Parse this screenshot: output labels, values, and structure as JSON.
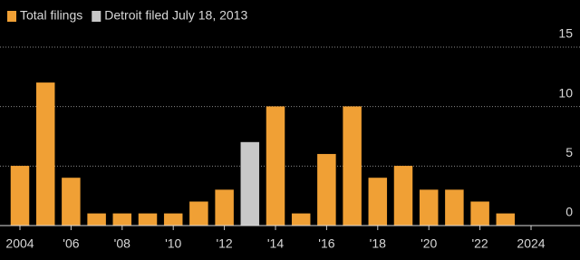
{
  "chart_data": {
    "type": "bar",
    "categories": [
      "2004",
      null,
      "'06",
      null,
      "'08",
      null,
      "'10",
      null,
      "'12",
      null,
      "'14",
      null,
      "'16",
      null,
      "'18",
      null,
      "'20",
      null,
      "'22",
      null,
      "2024",
      null
    ],
    "series": [
      {
        "name": "Total filings",
        "color": "#f0a035",
        "values": [
          5,
          12,
          4,
          1,
          1,
          1,
          1,
          2,
          3,
          null,
          10,
          1,
          6,
          10,
          4,
          5,
          3,
          3,
          2,
          1,
          0,
          0
        ]
      },
      {
        "name": "Detroit filed July 18, 2013",
        "color": "#c8c8c8",
        "values": [
          null,
          null,
          null,
          null,
          null,
          null,
          null,
          null,
          null,
          7,
          null,
          null,
          null,
          null,
          null,
          null,
          null,
          null,
          null,
          null,
          null,
          null
        ]
      }
    ],
    "ylim": [
      0,
      15
    ],
    "yticks": [
      0,
      5,
      10,
      15
    ],
    "grid": true
  }
}
